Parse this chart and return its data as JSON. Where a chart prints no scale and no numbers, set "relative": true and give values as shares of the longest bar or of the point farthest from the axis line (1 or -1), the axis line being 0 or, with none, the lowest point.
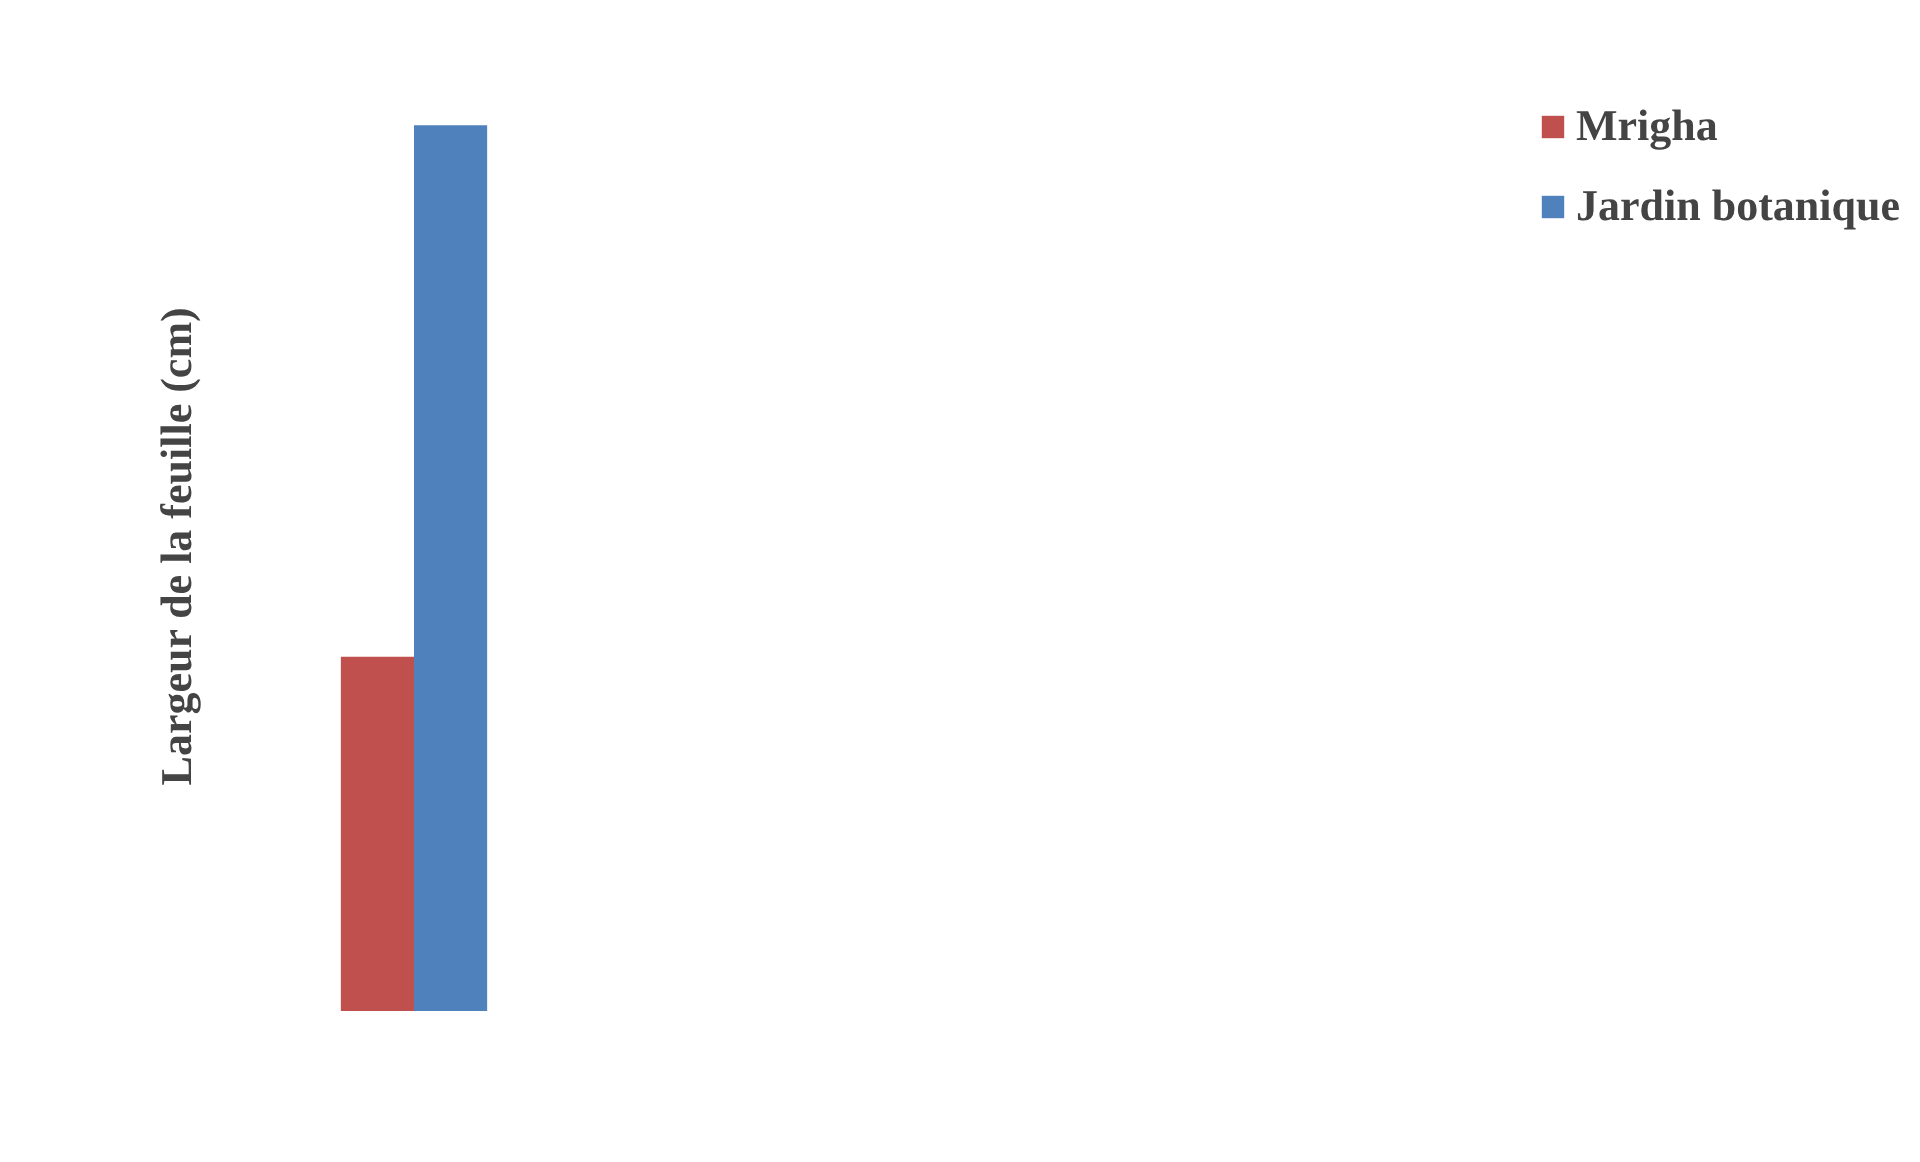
{
  "chart_data": {
    "type": "bar",
    "relative": true,
    "ylabel": "Largeur de la feuille (cm)",
    "categories": [
      null
    ],
    "series": [
      {
        "name": "Mrigha",
        "color": "#c0504d",
        "values": [
          0.4
        ]
      },
      {
        "name": "Jardin botanique",
        "color": "#4f81bd",
        "values": [
          1
        ]
      }
    ],
    "legend": "right",
    "grid": false
  }
}
